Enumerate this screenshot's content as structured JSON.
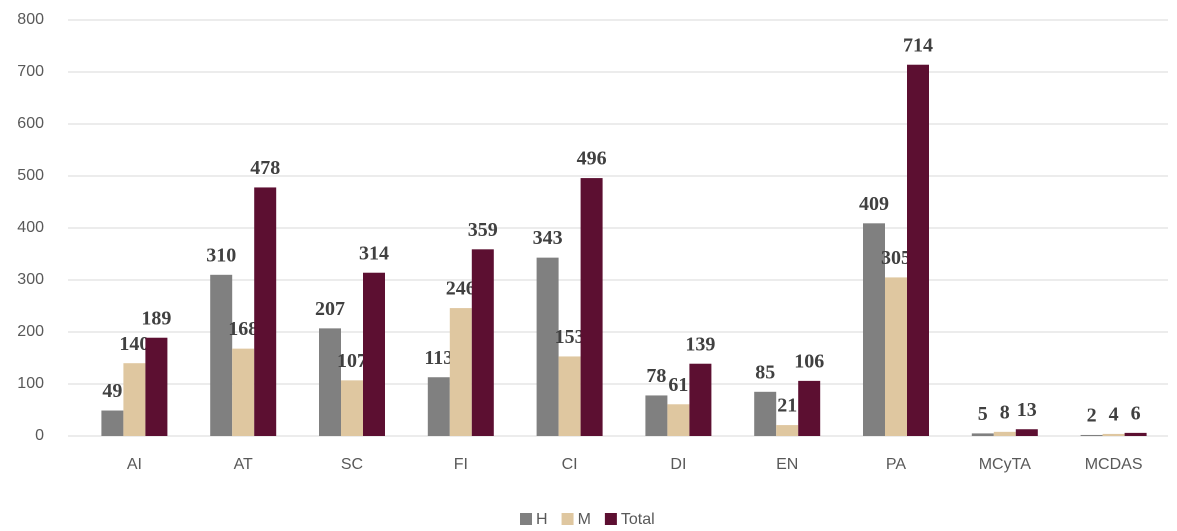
{
  "chart_data": {
    "type": "bar",
    "categories": [
      "AI",
      "AT",
      "SC",
      "FI",
      "CI",
      "DI",
      "EN",
      "PA",
      "MCyTA",
      "MCDAS"
    ],
    "series": [
      {
        "name": "H",
        "color": "#808080",
        "values": [
          49,
          310,
          207,
          113,
          343,
          78,
          85,
          409,
          5,
          2
        ]
      },
      {
        "name": "M",
        "color": "#dfc7a0",
        "values": [
          140,
          168,
          107,
          246,
          153,
          61,
          21,
          305,
          8,
          4
        ]
      },
      {
        "name": "Total",
        "color": "#5c0f31",
        "values": [
          189,
          478,
          314,
          359,
          496,
          139,
          106,
          714,
          13,
          6
        ]
      }
    ],
    "ylim": [
      0,
      800
    ],
    "yticks": [
      0,
      100,
      200,
      300,
      400,
      500,
      600,
      700,
      800
    ],
    "grid": true,
    "legend": "bottom"
  }
}
